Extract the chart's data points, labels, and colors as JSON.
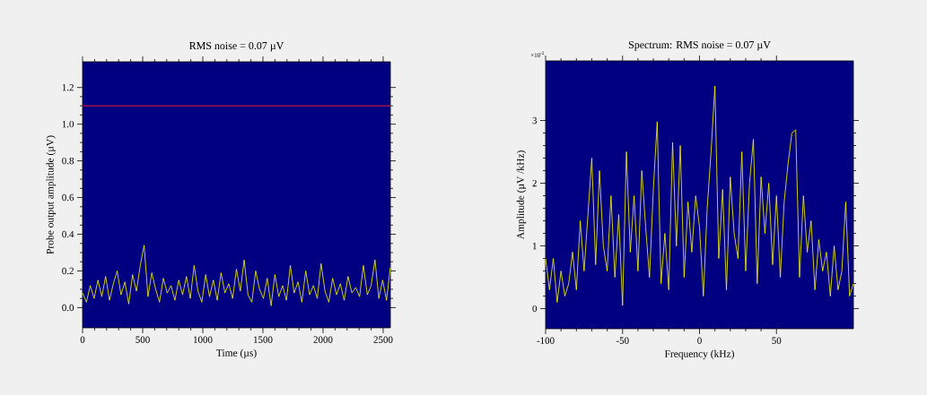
{
  "chart_data": [
    {
      "type": "line",
      "title": "RMS noise = 0.07 µV",
      "xlabel": "Time (µs)",
      "ylabel": "Probe output amplitude (µV)",
      "xlim": [
        0,
        2560
      ],
      "ylim": [
        -0.11,
        1.34
      ],
      "xticks": [
        0,
        500,
        1000,
        1500,
        2000,
        2500
      ],
      "yticks": [
        {
          "value": 0,
          "label": "0.0"
        },
        {
          "value": 0.2,
          "label": "0.2"
        },
        {
          "value": 0.4,
          "label": "0.4"
        },
        {
          "value": 0.6,
          "label": "0.6"
        },
        {
          "value": 0.8,
          "label": "0.8"
        },
        {
          "value": 1.0,
          "label": "1.0"
        },
        {
          "value": 1.2,
          "label": "1.2"
        }
      ],
      "ref_lines": [
        {
          "axis": "y",
          "value": 1.1,
          "label": null,
          "color": "#c0143c"
        }
      ],
      "x": [
        0,
        32,
        64,
        96,
        128,
        160,
        192,
        224,
        256,
        288,
        320,
        352,
        384,
        416,
        448,
        480,
        512,
        544,
        576,
        608,
        640,
        672,
        704,
        736,
        768,
        800,
        832,
        864,
        896,
        928,
        960,
        992,
        1024,
        1056,
        1088,
        1120,
        1152,
        1184,
        1216,
        1248,
        1280,
        1312,
        1344,
        1376,
        1408,
        1440,
        1472,
        1504,
        1536,
        1568,
        1600,
        1632,
        1664,
        1696,
        1728,
        1760,
        1792,
        1824,
        1856,
        1888,
        1920,
        1952,
        1984,
        2016,
        2048,
        2080,
        2112,
        2144,
        2176,
        2208,
        2240,
        2272,
        2304,
        2336,
        2368,
        2400,
        2432,
        2464,
        2496,
        2528,
        2560
      ],
      "series": [
        {
          "color": "#ffff00",
          "values": [
            0.08,
            0.03,
            0.12,
            0.05,
            0.15,
            0.06,
            0.17,
            0.04,
            0.13,
            0.2,
            0.07,
            0.14,
            0.02,
            0.18,
            0.09,
            0.23,
            0.34,
            0.06,
            0.19,
            0.1,
            0.03,
            0.16,
            0.08,
            0.12,
            0.04,
            0.15,
            0.07,
            0.17,
            0.05,
            0.23,
            0.09,
            0.03,
            0.18,
            0.06,
            0.15,
            0.04,
            0.19,
            0.08,
            0.13,
            0.05,
            0.21,
            0.09,
            0.26,
            0.07,
            0.03,
            0.2,
            0.1,
            0.05,
            0.16,
            0.01,
            0.18,
            0.06,
            0.12,
            0.04,
            0.23,
            0.08,
            0.14,
            0.03,
            0.2,
            0.07,
            0.12,
            0.05,
            0.24,
            0.09,
            0.03,
            0.16,
            0.07,
            0.13,
            0.04,
            0.17,
            0.08,
            0.11,
            0.06,
            0.23,
            0.07,
            0.12,
            0.26,
            0.05,
            0.15,
            0.04,
            0.22
          ]
        }
      ]
    },
    {
      "type": "line",
      "title": "Spectrum: RMS noise = 0.07 µV",
      "xlabel": "Frequency (kHz)",
      "ylabel": "Amplitude (µV /kHz)",
      "annotations": [
        "×10$^{-2}$"
      ],
      "xlim": [
        -100,
        100
      ],
      "ylim": [
        -0.32,
        3.95
      ],
      "xticks": [
        -100,
        -50,
        0,
        50
      ],
      "yticks": [
        0,
        1,
        2,
        3
      ],
      "x": [
        -100,
        -97.5,
        -95,
        -92.5,
        -90,
        -87.5,
        -85,
        -82.5,
        -80,
        -77.5,
        -75,
        -72.5,
        -70,
        -67.5,
        -65,
        -62.5,
        -60,
        -57.5,
        -55,
        -52.5,
        -50,
        -47.5,
        -45,
        -42.5,
        -40,
        -37.5,
        -35,
        -32.5,
        -30,
        -27.5,
        -25,
        -22.5,
        -20,
        -17.5,
        -15,
        -12.5,
        -10,
        -7.5,
        -5,
        -2.5,
        0,
        2.5,
        5,
        7.5,
        10,
        12.5,
        15,
        17.5,
        20,
        22.5,
        25,
        27.5,
        30,
        32.5,
        35,
        37.5,
        40,
        42.5,
        45,
        47.5,
        50,
        52.5,
        55,
        57.5,
        60,
        62.5,
        65,
        67.5,
        70,
        72.5,
        75,
        77.5,
        80,
        82.5,
        85,
        87.5,
        90,
        92.5,
        95,
        97.5,
        100
      ],
      "series": [
        {
          "color": "#ffff00",
          "values": [
            0.8,
            0.3,
            0.8,
            0.1,
            0.6,
            0.2,
            0.4,
            0.9,
            0.3,
            1.4,
            0.6,
            1.5,
            2.4,
            0.7,
            2.2,
            1.0,
            0.6,
            1.8,
            0.5,
            1.5,
            0.05,
            2.5,
            0.9,
            1.8,
            0.6,
            2.2,
            1.3,
            0.5,
            1.9,
            2.98,
            0.4,
            1.2,
            0.3,
            2.65,
            1.0,
            2.6,
            0.5,
            1.7,
            0.9,
            1.8,
            1.3,
            0.2,
            1.6,
            2.5,
            3.55,
            0.8,
            1.9,
            0.3,
            2.1,
            1.2,
            0.8,
            2.5,
            0.6,
            2.0,
            2.7,
            0.4,
            2.1,
            1.2,
            2.0,
            0.7,
            1.8,
            0.5,
            1.7,
            2.3,
            2.8,
            2.85,
            0.5,
            1.8,
            0.9,
            1.4,
            0.3,
            1.1,
            0.6,
            0.9,
            0.2,
            1.0,
            0.3,
            0.6,
            1.7,
            0.2,
            0.4
          ]
        }
      ]
    }
  ]
}
